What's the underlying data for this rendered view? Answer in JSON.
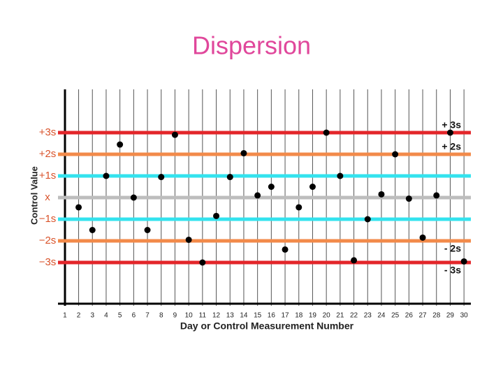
{
  "chart_data": {
    "type": "scatter",
    "title": "Dispersion",
    "xlabel": "Day or Control Measurement Number",
    "ylabel": "Control Value",
    "x": [
      2,
      3,
      4,
      5,
      6,
      7,
      8,
      9,
      10,
      11,
      12,
      13,
      14,
      15,
      16,
      17,
      18,
      19,
      20,
      21,
      22,
      23,
      24,
      25,
      26,
      27,
      28,
      29,
      30
    ],
    "values": [
      -0.45,
      -1.5,
      1.0,
      2.45,
      0,
      -1.5,
      0.95,
      2.9,
      -1.95,
      -3.0,
      -0.85,
      0.95,
      2.05,
      0.1,
      0.5,
      -2.4,
      -0.45,
      0.5,
      3.0,
      1.0,
      -2.9,
      -1.0,
      0.15,
      2.0,
      -0.05,
      -1.85,
      0.1,
      3.0,
      -2.95
    ],
    "color": "#000000",
    "xlim": [
      0.5,
      30.5
    ],
    "ylim": [
      -5,
      5
    ],
    "xticks": [
      1,
      2,
      3,
      4,
      5,
      6,
      7,
      8,
      9,
      10,
      11,
      12,
      13,
      14,
      15,
      16,
      17,
      18,
      19,
      20,
      21,
      22,
      23,
      24,
      25,
      26,
      27,
      28,
      29,
      30
    ],
    "yticks": [
      {
        "value": 3,
        "label": "+3s"
      },
      {
        "value": 2,
        "label": "+2s"
      },
      {
        "value": 1,
        "label": "+1s"
      },
      {
        "value": 0,
        "label": "x"
      },
      {
        "value": -1,
        "label": "−1s"
      },
      {
        "value": -2,
        "label": "−2s"
      },
      {
        "value": -3,
        "label": "−3s"
      }
    ],
    "control_lines": [
      {
        "value": 3,
        "color": "#e3262a",
        "label": "+ 3s"
      },
      {
        "value": 2,
        "color": "#f28a4a",
        "label": "+ 2s"
      },
      {
        "value": 1,
        "color": "#33e3ee"
      },
      {
        "value": 0,
        "color": "#bdbdbd"
      },
      {
        "value": -1,
        "color": "#33e3ee"
      },
      {
        "value": -2,
        "color": "#f28a4a",
        "label": "- 2s"
      },
      {
        "value": -3,
        "color": "#e3262a",
        "label": "- 3s"
      }
    ],
    "grid": true
  }
}
